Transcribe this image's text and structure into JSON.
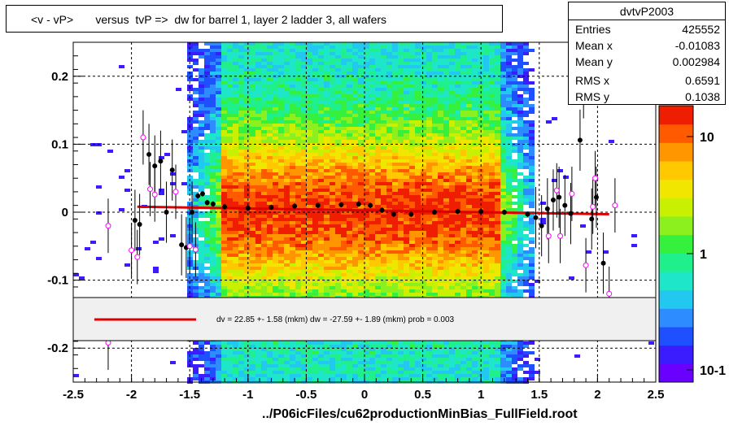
{
  "title": "<v - vP>       versus  tvP =>  dw for barrel 1, layer 2 ladder 3, all wafers",
  "stats": {
    "name": "dvtvP2003",
    "rows": [
      {
        "key": "Entries",
        "value": "425552"
      },
      {
        "key": "Mean x",
        "value": "-0.01083"
      },
      {
        "key": "Mean y",
        "value": "0.002984"
      },
      {
        "key": "RMS x",
        "value": "0.6591"
      },
      {
        "key": "RMS y",
        "value": "0.1038"
      }
    ]
  },
  "fit_legend": "dv =   22.85 +-  1.58 (mkm) dw =  -27.59 +-  1.89 (mkm) prob = 0.003",
  "footer": "../P06icFiles/cu62productionMinBias_FullField.root",
  "colors": {
    "fit_line": "#dd0000",
    "profile_marker": "#000000",
    "open_marker": "#ff00ff",
    "frame": "#000000"
  },
  "chart_data": {
    "type": "heatmap",
    "xlim": [
      -2.5,
      2.5
    ],
    "ylim": [
      -0.25,
      0.25
    ],
    "x_ticks": [
      "-2.5",
      "-2",
      "-1.5",
      "-1",
      "-0.5",
      "0",
      "0.5",
      "1",
      "1.5",
      "2",
      "2.5"
    ],
    "y_ticks": [
      "-0.2",
      "-0.1",
      "0",
      "0.1",
      "0.2"
    ],
    "colorbar_ticks": [
      "10",
      "1",
      "10-1"
    ],
    "colorbar_scale": "log",
    "grid": true,
    "fit_line": {
      "x": [
        -1.95,
        2.1
      ],
      "y": [
        0.008,
        -0.003
      ]
    },
    "profile_points": [
      {
        "x": -1.97,
        "y": -0.012
      },
      {
        "x": -1.93,
        "y": -0.018
      },
      {
        "x": -1.85,
        "y": 0.085
      },
      {
        "x": -1.8,
        "y": 0.068
      },
      {
        "x": -1.75,
        "y": 0.075
      },
      {
        "x": -1.7,
        "y": 0.0
      },
      {
        "x": -1.65,
        "y": 0.062
      },
      {
        "x": -1.57,
        "y": -0.048
      },
      {
        "x": -1.53,
        "y": -0.052
      },
      {
        "x": -1.48,
        "y": 0.0
      },
      {
        "x": -1.43,
        "y": 0.024
      },
      {
        "x": -1.39,
        "y": 0.027
      },
      {
        "x": -1.35,
        "y": 0.014
      },
      {
        "x": -1.3,
        "y": 0.012
      },
      {
        "x": -1.2,
        "y": 0.008
      },
      {
        "x": -1.0,
        "y": 0.006
      },
      {
        "x": -0.8,
        "y": 0.007
      },
      {
        "x": -0.6,
        "y": 0.009
      },
      {
        "x": -0.4,
        "y": 0.01
      },
      {
        "x": -0.2,
        "y": 0.011
      },
      {
        "x": -0.05,
        "y": 0.012
      },
      {
        "x": 0.05,
        "y": 0.01
      },
      {
        "x": 0.15,
        "y": 0.003
      },
      {
        "x": 0.25,
        "y": -0.003
      },
      {
        "x": 0.4,
        "y": -0.003
      },
      {
        "x": 0.6,
        "y": 0.0
      },
      {
        "x": 0.8,
        "y": 0.001
      },
      {
        "x": 1.0,
        "y": 0.001
      },
      {
        "x": 1.2,
        "y": 0.0
      },
      {
        "x": 1.4,
        "y": -0.003
      },
      {
        "x": 1.47,
        "y": -0.008
      },
      {
        "x": 1.52,
        "y": -0.02
      },
      {
        "x": 1.57,
        "y": 0.005
      },
      {
        "x": 1.62,
        "y": 0.018
      },
      {
        "x": 1.67,
        "y": 0.022
      },
      {
        "x": 1.72,
        "y": 0.01
      },
      {
        "x": 1.77,
        "y": -0.002
      },
      {
        "x": 1.85,
        "y": 0.106
      },
      {
        "x": 1.95,
        "y": -0.01
      },
      {
        "x": 1.99,
        "y": 0.022
      },
      {
        "x": 2.05,
        "y": -0.075
      }
    ],
    "open_points": [
      {
        "x": -2.2,
        "y": -0.02
      },
      {
        "x": -2.0,
        "y": -0.056
      },
      {
        "x": -1.95,
        "y": -0.066
      },
      {
        "x": -1.9,
        "y": 0.11
      },
      {
        "x": -1.84,
        "y": 0.034
      },
      {
        "x": -1.8,
        "y": 0.026
      },
      {
        "x": -1.62,
        "y": 0.03
      },
      {
        "x": -1.5,
        "y": -0.05
      },
      {
        "x": -1.45,
        "y": -0.055
      },
      {
        "x": 1.58,
        "y": -0.035
      },
      {
        "x": 1.65,
        "y": 0.032
      },
      {
        "x": 1.68,
        "y": -0.035
      },
      {
        "x": 1.78,
        "y": 0.027
      },
      {
        "x": 1.9,
        "y": -0.078
      },
      {
        "x": 1.96,
        "y": 0.008
      },
      {
        "x": 1.98,
        "y": 0.05
      },
      {
        "x": 2.1,
        "y": -0.12
      },
      {
        "x": 2.15,
        "y": 0.01
      },
      {
        "x": 1.88,
        "y": 0.178
      },
      {
        "x": -2.2,
        "y": -0.192
      }
    ]
  }
}
